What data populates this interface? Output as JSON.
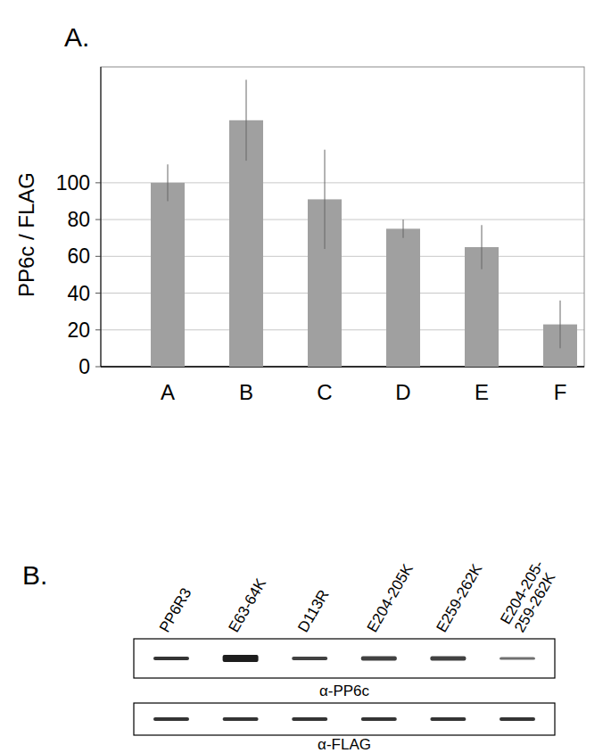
{
  "chart_data": {
    "type": "bar",
    "y_label": "PP6c / FLAG",
    "categories": [
      "A",
      "B",
      "C",
      "D",
      "E",
      "F"
    ],
    "values": [
      100,
      134,
      91,
      75,
      65,
      23
    ],
    "errors": [
      10,
      22,
      27,
      5,
      12,
      13
    ],
    "color": "#a0a0a0",
    "ylim": [
      0,
      163
    ],
    "yticks": [
      0,
      20,
      40,
      60,
      80,
      100
    ],
    "grid": true
  },
  "panel_labels": [
    "A.",
    "B."
  ],
  "blot": {
    "lanes": [
      [
        "PP6R3"
      ],
      [
        "E63-64K"
      ],
      [
        "D113R"
      ],
      [
        "E204-205K"
      ],
      [
        "E259-262K"
      ],
      [
        "E204-205-",
        "259-262K"
      ]
    ],
    "blots": [
      "α-PP6c",
      "α-FLAG"
    ]
  }
}
